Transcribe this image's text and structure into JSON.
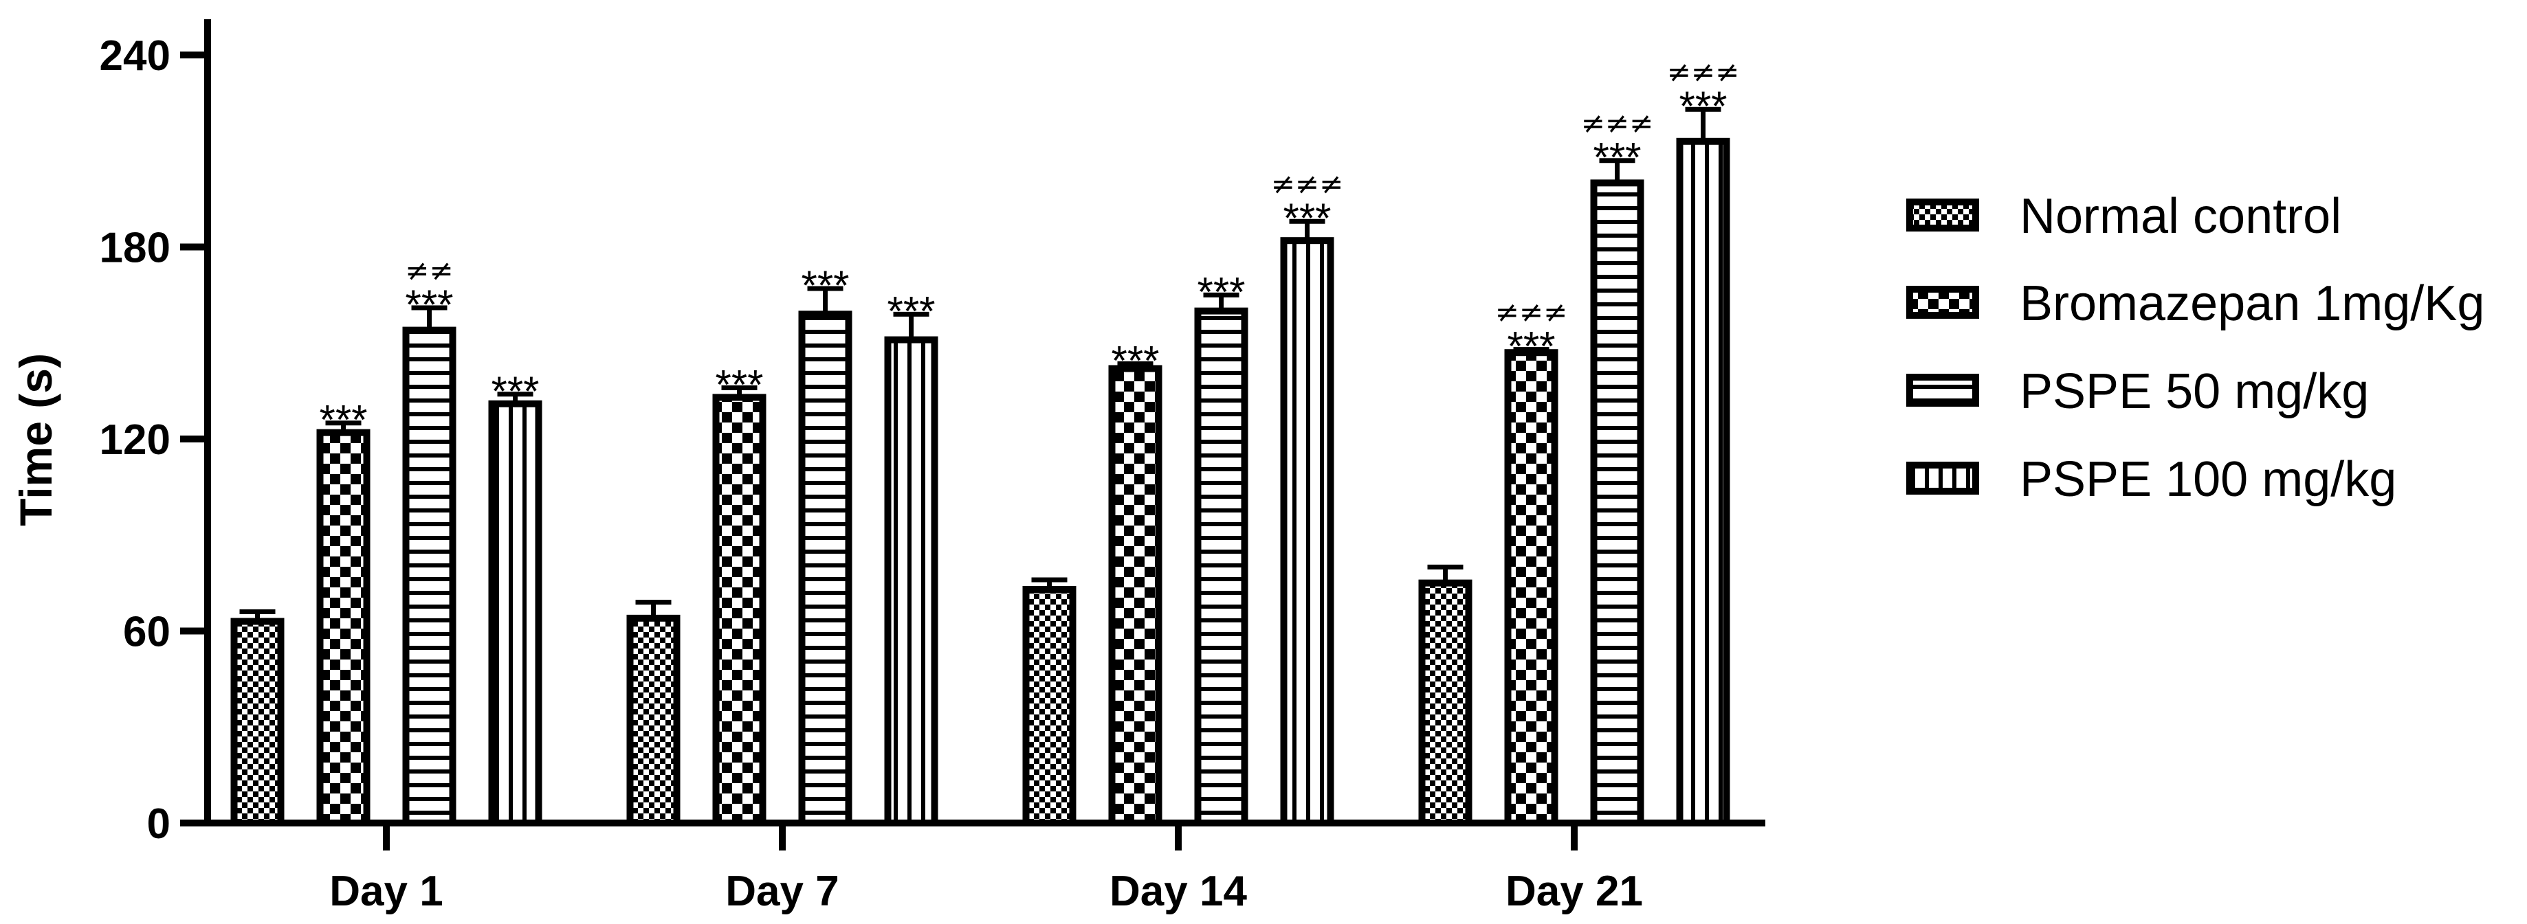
{
  "chart_data": {
    "type": "bar",
    "title": "",
    "xlabel": "",
    "ylabel": "Time (s)",
    "ylim": [
      0,
      255
    ],
    "yticks": [
      0,
      60,
      120,
      180,
      240
    ],
    "categories": [
      "Day 1",
      "Day 7",
      "Day 14",
      "Day 21"
    ],
    "series": [
      {
        "name": "Normal control",
        "pattern": "small-checker",
        "values": [
          63,
          64,
          73,
          75
        ],
        "errors": [
          3,
          5,
          3,
          5
        ],
        "stars": [
          "",
          "",
          "",
          ""
        ],
        "neq": [
          "",
          "",
          "",
          ""
        ]
      },
      {
        "name": "Bromazepan 1mg/Kg",
        "pattern": "large-checker",
        "values": [
          122,
          133,
          142,
          147
        ],
        "errors": [
          3,
          3,
          1.5,
          1
        ],
        "stars": [
          "***",
          "***",
          "***",
          "***"
        ],
        "neq": [
          "",
          "",
          "",
          "≠≠≠"
        ]
      },
      {
        "name": "PSPE 50 mg/kg",
        "pattern": "horizontal-lines",
        "values": [
          154,
          159,
          160,
          200
        ],
        "errors": [
          7,
          8,
          5,
          7
        ],
        "stars": [
          "***",
          "***",
          "***",
          "***"
        ],
        "neq": [
          "≠≠",
          "",
          "",
          "≠≠≠"
        ]
      },
      {
        "name": "PSPE 100 mg/kg",
        "pattern": "vertical-lines",
        "values": [
          131,
          151,
          182,
          213
        ],
        "errors": [
          3,
          8,
          6,
          10
        ],
        "stars": [
          "***",
          "***",
          "***",
          "***"
        ],
        "neq": [
          "",
          "",
          "≠≠≠",
          "≠≠≠"
        ]
      }
    ],
    "legend": [
      "Normal control",
      "Bromazepan 1mg/Kg",
      "PSPE 50 mg/kg",
      "PSPE 100 mg/kg"
    ],
    "legend_position": "right",
    "grid": false
  }
}
